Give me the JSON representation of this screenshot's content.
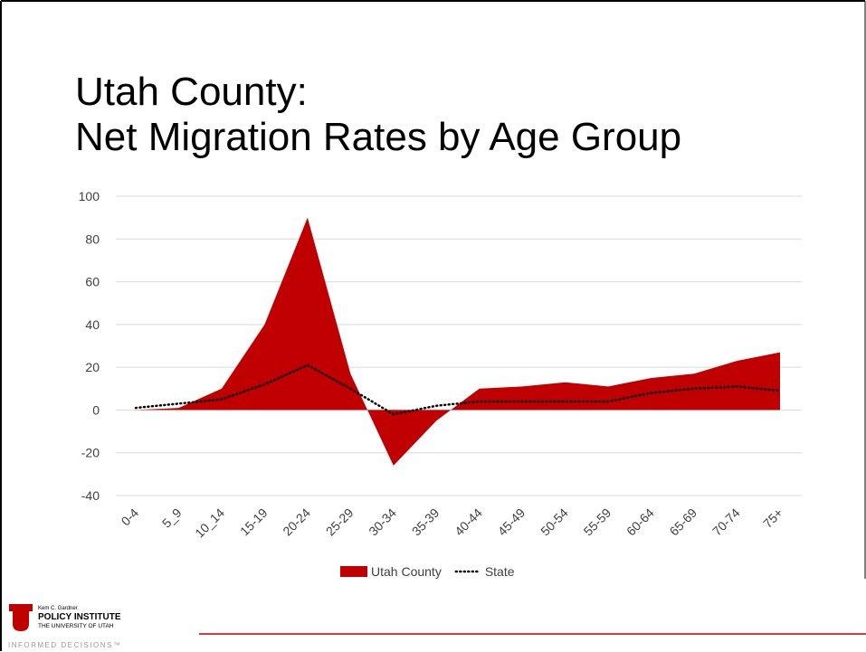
{
  "chart_data": {
    "type": "area",
    "title": [
      "Utah County:",
      "Net Migration Rates by Age Group"
    ],
    "categories": [
      "0-4",
      "5_9",
      "10_14",
      "15-19",
      "20-24",
      "25-29",
      "30-34",
      "35-39",
      "40-44",
      "45-49",
      "50-54",
      "55-59",
      "60-64",
      "65-69",
      "70-74",
      "75+"
    ],
    "series": [
      {
        "name": "Utah County",
        "color": "#c00000",
        "style": "area",
        "values": [
          0,
          1,
          10,
          40,
          90,
          17,
          -26,
          -5,
          10,
          11,
          13,
          11,
          15,
          17,
          23,
          27
        ]
      },
      {
        "name": "State",
        "color": "#000000",
        "style": "dotted-line",
        "values": [
          1,
          3,
          5,
          12,
          21,
          10,
          -2,
          2,
          4,
          4,
          4,
          4,
          8,
          10,
          11,
          9
        ]
      }
    ],
    "ylim": [
      -40,
      100
    ],
    "yticks": [
      -40,
      -20,
      0,
      20,
      40,
      60,
      80,
      100
    ],
    "grid": true,
    "legend": "bottom",
    "footer": {
      "kicker": "Kem C. Gardner",
      "name": "POLICY INSTITUTE",
      "university": "THE UNIVERSITY OF UTAH",
      "tagline": "INFORMED DECISIONS™"
    }
  }
}
